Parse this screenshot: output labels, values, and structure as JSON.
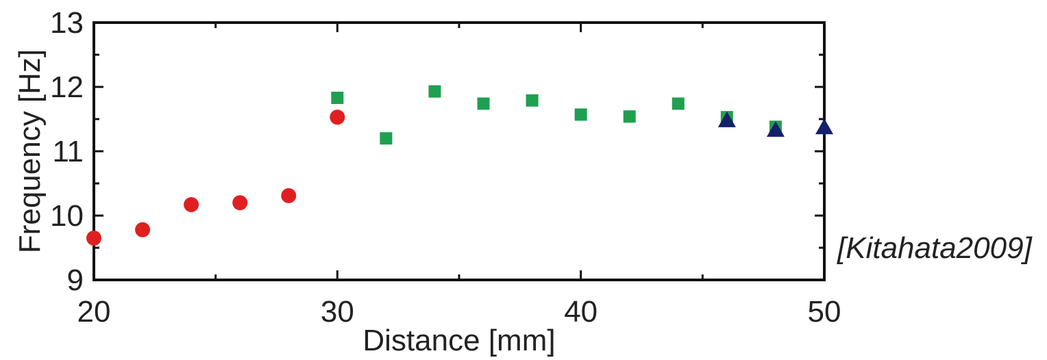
{
  "chart_data": {
    "type": "scatter",
    "title": "",
    "xlabel": "Distance [mm]",
    "ylabel": "Frequency [Hz]",
    "xlim": [
      20,
      50
    ],
    "ylim": [
      9,
      13
    ],
    "x_ticks": [
      20,
      30,
      40,
      50
    ],
    "y_ticks": [
      9,
      10,
      11,
      12,
      13
    ],
    "x_tick_labels": [
      "20",
      "30",
      "40",
      "50"
    ],
    "y_tick_labels": [
      "9",
      "10",
      "11",
      "12",
      "13"
    ],
    "grid": false,
    "legend": "none",
    "series": [
      {
        "marker": "circle",
        "color": "#e02020",
        "points": [
          [
            20,
            9.65
          ],
          [
            22,
            9.78
          ],
          [
            24,
            10.17
          ],
          [
            26,
            10.2
          ],
          [
            28,
            10.31
          ],
          [
            30,
            11.53
          ]
        ]
      },
      {
        "marker": "square",
        "color": "#1fa050",
        "points": [
          [
            30,
            11.83
          ],
          [
            32,
            11.2
          ],
          [
            34,
            11.93
          ],
          [
            36,
            11.74
          ],
          [
            38,
            11.79
          ],
          [
            40,
            11.57
          ],
          [
            42,
            11.54
          ],
          [
            44,
            11.74
          ],
          [
            46,
            11.53
          ],
          [
            48,
            11.38
          ]
        ]
      },
      {
        "marker": "triangle",
        "color": "#15206a",
        "points": [
          [
            46,
            11.47
          ],
          [
            48,
            11.32
          ],
          [
            50,
            11.36
          ]
        ]
      }
    ]
  },
  "caption": "[Kitahata2009]"
}
